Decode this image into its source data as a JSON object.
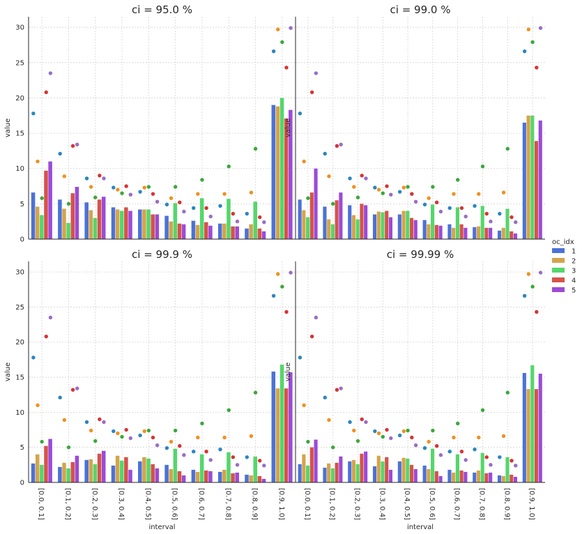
{
  "figure": {
    "xlabel": "interval",
    "ylabel": "value",
    "legend": {
      "title": "oc_idx",
      "placement": "right",
      "entries": [
        "1",
        "2",
        "3",
        "4",
        "5"
      ]
    },
    "colors": [
      "#4c72d6",
      "#d4a44c",
      "#55d66b",
      "#d6524b",
      "#9b4bd6"
    ],
    "point_colors": [
      "#2a86c0",
      "#f0901e",
      "#3aa83a",
      "#d63333",
      "#9a6cc6"
    ]
  },
  "chart_data": [
    {
      "type": "bar",
      "title": "ci = 95.0 %",
      "xlabel": "",
      "ylabel": "value",
      "ylim": [
        0,
        31.5
      ],
      "yticks": [
        "0",
        "5",
        "10",
        "15",
        "20",
        "25",
        "30"
      ],
      "grid": true,
      "categories": [
        "[0.0, 0.1]",
        "[0.1, 0.2]",
        "[0.2, 0.3]",
        "[0.3, 0.4]",
        "[0.4, 0.5]",
        "[0.5, 0.6]",
        "[0.6, 0.7]",
        "[0.7, 0.8]",
        "[0.8, 0.9]",
        "[0.9, 1.0]"
      ],
      "series": [
        {
          "name": "1",
          "values": [
            6.6,
            5.6,
            5.2,
            4.5,
            4.2,
            3.3,
            2.6,
            2.2,
            1.5,
            19.0
          ]
        },
        {
          "name": "2",
          "values": [
            4.6,
            4.3,
            4.1,
            4.2,
            4.2,
            2.5,
            2.0,
            2.2,
            2.1,
            18.8
          ]
        },
        {
          "name": "3",
          "values": [
            3.4,
            2.3,
            3.0,
            4.0,
            4.2,
            5.1,
            5.8,
            5.7,
            5.3,
            20.0
          ]
        },
        {
          "name": "4",
          "values": [
            9.7,
            6.5,
            5.6,
            4.5,
            3.5,
            2.2,
            2.4,
            1.8,
            1.5,
            17.1
          ]
        },
        {
          "name": "5",
          "values": [
            11.0,
            7.4,
            6.0,
            4.0,
            3.5,
            2.1,
            1.9,
            1.8,
            1.1,
            18.3
          ]
        }
      ],
      "points": [
        {
          "name": "1",
          "values": [
            17.8,
            12.1,
            8.6,
            7.3,
            6.7,
            4.9,
            4.4,
            4.7,
            3.6,
            26.6
          ]
        },
        {
          "name": "2",
          "values": [
            11.0,
            8.9,
            7.4,
            7.0,
            7.3,
            5.8,
            6.4,
            6.4,
            6.6,
            29.7
          ]
        },
        {
          "name": "3",
          "values": [
            5.8,
            5.0,
            5.9,
            6.5,
            7.4,
            7.4,
            8.4,
            10.3,
            12.8,
            27.9
          ]
        },
        {
          "name": "4",
          "values": [
            20.8,
            13.2,
            9.0,
            7.5,
            6.4,
            5.2,
            4.4,
            3.6,
            3.1,
            24.3
          ]
        },
        {
          "name": "5",
          "values": [
            23.5,
            13.4,
            8.6,
            6.3,
            5.3,
            3.9,
            3.2,
            2.5,
            2.4,
            29.9
          ]
        }
      ]
    },
    {
      "type": "bar",
      "title": "ci = 99.0 %",
      "xlabel": "",
      "ylabel": "value",
      "ylim": [
        0,
        31.5
      ],
      "yticks": [
        "0",
        "5",
        "10",
        "15",
        "20",
        "25",
        "30"
      ],
      "grid": true,
      "categories": [
        "[0.0, 0.1]",
        "[0.1, 0.2]",
        "[0.2, 0.3]",
        "[0.3, 0.4]",
        "[0.4, 0.5]",
        "[0.5, 0.6]",
        "[0.6, 0.7]",
        "[0.7, 0.8]",
        "[0.8, 0.9]",
        "[0.9, 1.0]"
      ],
      "series": [
        {
          "name": "1",
          "values": [
            5.6,
            4.6,
            4.8,
            3.5,
            3.5,
            2.7,
            2.1,
            1.7,
            1.2,
            16.5
          ]
        },
        {
          "name": "2",
          "values": [
            4.1,
            2.8,
            3.4,
            3.9,
            4.0,
            2.1,
            1.6,
            1.8,
            1.6,
            17.5
          ]
        },
        {
          "name": "3",
          "values": [
            3.1,
            2.1,
            2.8,
            3.8,
            4.0,
            4.9,
            4.5,
            4.7,
            4.3,
            17.5
          ]
        },
        {
          "name": "4",
          "values": [
            6.6,
            5.5,
            5.0,
            4.0,
            3.0,
            2.0,
            2.1,
            1.6,
            1.1,
            13.9
          ]
        },
        {
          "name": "5",
          "values": [
            10.0,
            6.6,
            4.8,
            3.1,
            2.7,
            1.9,
            1.6,
            1.6,
            0.8,
            16.8
          ]
        }
      ],
      "points": [
        {
          "name": "1",
          "values": [
            17.8,
            12.1,
            8.6,
            7.3,
            6.7,
            4.9,
            4.4,
            4.7,
            3.6,
            26.6
          ]
        },
        {
          "name": "2",
          "values": [
            11.0,
            8.9,
            7.4,
            7.0,
            7.3,
            5.8,
            6.4,
            6.4,
            6.6,
            29.7
          ]
        },
        {
          "name": "3",
          "values": [
            5.8,
            5.0,
            5.9,
            6.5,
            7.4,
            7.4,
            8.4,
            10.3,
            12.8,
            27.9
          ]
        },
        {
          "name": "4",
          "values": [
            20.8,
            13.2,
            9.0,
            7.5,
            6.4,
            5.2,
            4.4,
            3.6,
            3.1,
            24.3
          ]
        },
        {
          "name": "5",
          "values": [
            23.5,
            13.4,
            8.6,
            6.3,
            5.3,
            3.9,
            3.2,
            2.5,
            2.4,
            29.9
          ]
        }
      ]
    },
    {
      "type": "bar",
      "title": "ci = 99.9 %",
      "xlabel": "interval",
      "ylabel": "value",
      "ylim": [
        0,
        31.5
      ],
      "yticks": [
        "0",
        "5",
        "10",
        "15",
        "20",
        "25",
        "30"
      ],
      "grid": true,
      "categories": [
        "[0.0, 0.1]",
        "[0.1, 0.2]",
        "[0.2, 0.3]",
        "[0.3, 0.4]",
        "[0.4, 0.5]",
        "[0.5, 0.6]",
        "[0.6, 0.7]",
        "[0.7, 0.8]",
        "[0.8, 0.9]",
        "[0.9, 1.0]"
      ],
      "series": [
        {
          "name": "1",
          "values": [
            2.7,
            2.2,
            3.2,
            2.4,
            3.0,
            2.5,
            1.8,
            1.5,
            1.1,
            15.8
          ]
        },
        {
          "name": "2",
          "values": [
            4.0,
            2.8,
            3.3,
            3.8,
            3.6,
            1.9,
            1.5,
            1.8,
            1.0,
            13.4
          ]
        },
        {
          "name": "3",
          "values": [
            2.5,
            2.0,
            2.6,
            3.1,
            3.4,
            4.8,
            4.0,
            4.3,
            3.7,
            16.8
          ]
        },
        {
          "name": "4",
          "values": [
            5.2,
            2.9,
            4.1,
            3.6,
            2.6,
            1.6,
            1.7,
            1.3,
            0.9,
            13.4
          ]
        },
        {
          "name": "5",
          "values": [
            6.2,
            3.8,
            4.5,
            1.8,
            2.0,
            1.0,
            1.6,
            1.4,
            0.5,
            15.7
          ]
        }
      ],
      "points": [
        {
          "name": "1",
          "values": [
            17.8,
            12.1,
            8.6,
            7.3,
            6.7,
            4.9,
            4.4,
            4.7,
            3.6,
            26.6
          ]
        },
        {
          "name": "2",
          "values": [
            11.0,
            8.9,
            7.4,
            7.0,
            7.3,
            5.8,
            6.4,
            6.4,
            6.6,
            29.7
          ]
        },
        {
          "name": "3",
          "values": [
            5.8,
            5.0,
            5.9,
            6.5,
            7.4,
            7.4,
            8.4,
            10.3,
            12.8,
            27.9
          ]
        },
        {
          "name": "4",
          "values": [
            20.8,
            13.2,
            9.0,
            7.5,
            6.4,
            5.2,
            4.4,
            3.6,
            3.1,
            24.3
          ]
        },
        {
          "name": "5",
          "values": [
            23.5,
            13.4,
            8.6,
            6.3,
            5.3,
            3.9,
            3.2,
            2.5,
            2.4,
            29.9
          ]
        }
      ]
    },
    {
      "type": "bar",
      "title": "ci = 99.99 %",
      "xlabel": "interval",
      "ylabel": "value",
      "ylim": [
        0,
        31.5
      ],
      "yticks": [
        "0",
        "5",
        "10",
        "15",
        "20",
        "25",
        "30"
      ],
      "grid": true,
      "categories": [
        "[0.0, 0.1]",
        "[0.1, 0.2]",
        "[0.2, 0.3]",
        "[0.3, 0.4]",
        "[0.4, 0.5]",
        "[0.5, 0.6]",
        "[0.6, 0.7]",
        "[0.7, 0.8]",
        "[0.8, 0.9]",
        "[0.9, 1.0]"
      ],
      "series": [
        {
          "name": "1",
          "values": [
            2.6,
            2.1,
            3.0,
            2.3,
            3.0,
            2.4,
            1.8,
            1.4,
            1.0,
            15.6
          ]
        },
        {
          "name": "2",
          "values": [
            4.0,
            2.7,
            3.2,
            3.8,
            3.5,
            1.9,
            1.4,
            1.7,
            0.9,
            13.3
          ]
        },
        {
          "name": "3",
          "values": [
            2.4,
            2.0,
            2.6,
            3.0,
            3.4,
            4.8,
            4.0,
            4.2,
            3.6,
            16.7
          ]
        },
        {
          "name": "4",
          "values": [
            5.0,
            2.8,
            4.1,
            3.6,
            2.5,
            1.6,
            1.7,
            1.3,
            1.1,
            13.3
          ]
        },
        {
          "name": "5",
          "values": [
            6.1,
            3.7,
            4.4,
            1.8,
            1.9,
            0.9,
            1.5,
            1.4,
            0.8,
            15.5
          ]
        }
      ],
      "points": [
        {
          "name": "1",
          "values": [
            17.8,
            12.1,
            8.6,
            7.3,
            6.7,
            4.9,
            4.4,
            4.7,
            3.6,
            26.6
          ]
        },
        {
          "name": "2",
          "values": [
            11.0,
            8.9,
            7.4,
            7.0,
            7.3,
            5.8,
            6.4,
            6.4,
            6.6,
            29.7
          ]
        },
        {
          "name": "3",
          "values": [
            5.8,
            5.0,
            5.9,
            6.5,
            7.4,
            7.4,
            8.4,
            10.3,
            12.8,
            27.9
          ]
        },
        {
          "name": "4",
          "values": [
            20.8,
            13.2,
            9.0,
            7.5,
            6.4,
            5.2,
            4.4,
            3.6,
            3.1,
            24.3
          ]
        },
        {
          "name": "5",
          "values": [
            23.5,
            13.4,
            8.6,
            6.3,
            5.3,
            3.9,
            3.2,
            2.5,
            2.4,
            29.9
          ]
        }
      ]
    }
  ]
}
